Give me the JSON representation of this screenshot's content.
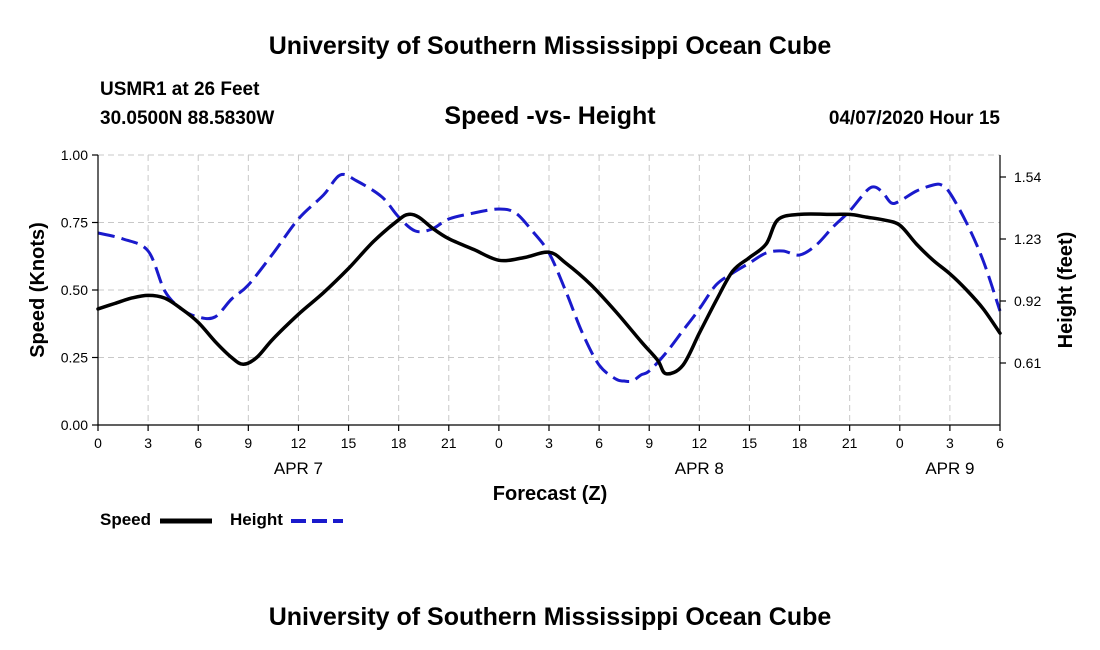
{
  "chart_data": {
    "type": "line",
    "title": "University of Southern Mississippi Ocean Cube",
    "footer_title": "University of Southern Mississippi Ocean Cube",
    "station": "USMR1 at 26 Feet",
    "location": "30.0500N 88.5830W",
    "subtitle": "Speed -vs- Height",
    "date": "04/07/2020 Hour 15",
    "xlabel": "Forecast (Z)",
    "ylabel_left": "Speed (Knots)",
    "ylabel_right": "Height (feet)",
    "x_range": [
      0,
      54
    ],
    "ylim_left": [
      0,
      1.0
    ],
    "ylim_right": [
      0.3,
      1.65
    ],
    "x_ticks": [
      {
        "x": 0,
        "label": "0"
      },
      {
        "x": 3,
        "label": "3"
      },
      {
        "x": 6,
        "label": "6"
      },
      {
        "x": 9,
        "label": "9"
      },
      {
        "x": 12,
        "label": "12"
      },
      {
        "x": 15,
        "label": "15"
      },
      {
        "x": 18,
        "label": "18"
      },
      {
        "x": 21,
        "label": "21"
      },
      {
        "x": 24,
        "label": "0"
      },
      {
        "x": 27,
        "label": "3"
      },
      {
        "x": 30,
        "label": "6"
      },
      {
        "x": 33,
        "label": "9"
      },
      {
        "x": 36,
        "label": "12"
      },
      {
        "x": 39,
        "label": "15"
      },
      {
        "x": 42,
        "label": "18"
      },
      {
        "x": 45,
        "label": "21"
      },
      {
        "x": 48,
        "label": "0"
      },
      {
        "x": 51,
        "label": "3"
      },
      {
        "x": 54,
        "label": "6"
      }
    ],
    "day_labels": [
      {
        "x": 12,
        "label": "APR 7"
      },
      {
        "x": 36,
        "label": "APR 8"
      },
      {
        "x": 51,
        "label": "APR 9"
      }
    ],
    "y_ticks_left": [
      {
        "value": 0.0,
        "label": "0.00"
      },
      {
        "value": 0.25,
        "label": "0.25"
      },
      {
        "value": 0.5,
        "label": "0.50"
      },
      {
        "value": 0.75,
        "label": "0.75"
      },
      {
        "value": 1.0,
        "label": "1.00"
      }
    ],
    "y_ticks_right": [
      {
        "value": 0.61,
        "label": "0.61"
      },
      {
        "value": 0.92,
        "label": "0.92"
      },
      {
        "value": 1.23,
        "label": "1.23"
      },
      {
        "value": 1.54,
        "label": "1.54"
      }
    ],
    "series": [
      {
        "name": "Speed",
        "axis": "left",
        "color": "#000000",
        "style": "solid",
        "x": [
          0,
          1,
          2,
          3,
          4,
          5,
          6,
          7,
          8,
          8.7,
          9.5,
          10.5,
          12,
          13.5,
          15,
          16.5,
          18,
          18.6,
          19.2,
          20,
          21,
          22.5,
          24,
          25.5,
          27,
          28,
          29.5,
          31,
          32.5,
          33.5,
          34,
          35,
          36,
          37,
          38,
          39,
          40,
          40.7,
          42,
          44,
          45,
          46,
          47,
          48,
          49,
          50,
          51,
          52,
          53,
          54
        ],
        "values": [
          0.43,
          0.45,
          0.47,
          0.48,
          0.47,
          0.43,
          0.38,
          0.31,
          0.25,
          0.225,
          0.25,
          0.32,
          0.41,
          0.49,
          0.58,
          0.68,
          0.76,
          0.78,
          0.77,
          0.73,
          0.69,
          0.65,
          0.61,
          0.62,
          0.64,
          0.6,
          0.52,
          0.42,
          0.31,
          0.24,
          0.19,
          0.22,
          0.34,
          0.46,
          0.57,
          0.62,
          0.67,
          0.76,
          0.78,
          0.78,
          0.78,
          0.77,
          0.76,
          0.74,
          0.67,
          0.61,
          0.56,
          0.5,
          0.43,
          0.34
        ]
      },
      {
        "name": "Height",
        "axis": "right",
        "color": "#1a1acc",
        "style": "dashed",
        "x": [
          0,
          1.5,
          3,
          4,
          5,
          6,
          7,
          8,
          9,
          10.5,
          12,
          13.5,
          14.5,
          15.5,
          17,
          18,
          19,
          20,
          21,
          22.5,
          24,
          25,
          26,
          27,
          28,
          29,
          30,
          31,
          31.5,
          32,
          32.5,
          33,
          34,
          35,
          36,
          37,
          38,
          39,
          40,
          41,
          42,
          43,
          44,
          45,
          46,
          46.5,
          47,
          47.5,
          48,
          49,
          50,
          50.5,
          51,
          52,
          53,
          54
        ],
        "values": [
          1.26,
          1.23,
          1.17,
          0.97,
          0.88,
          0.84,
          0.84,
          0.93,
          1.0,
          1.16,
          1.33,
          1.45,
          1.55,
          1.52,
          1.44,
          1.34,
          1.27,
          1.28,
          1.33,
          1.36,
          1.38,
          1.36,
          1.27,
          1.16,
          0.97,
          0.76,
          0.6,
          0.53,
          0.52,
          0.52,
          0.55,
          0.57,
          0.66,
          0.77,
          0.88,
          1.0,
          1.06,
          1.11,
          1.16,
          1.17,
          1.15,
          1.2,
          1.29,
          1.37,
          1.47,
          1.49,
          1.46,
          1.41,
          1.42,
          1.47,
          1.5,
          1.5,
          1.46,
          1.31,
          1.12,
          0.87
        ]
      }
    ],
    "legend": [
      {
        "label": "Speed",
        "color": "#000000",
        "style": "solid"
      },
      {
        "label": "Height",
        "color": "#1a1acc",
        "style": "dashed"
      }
    ]
  }
}
